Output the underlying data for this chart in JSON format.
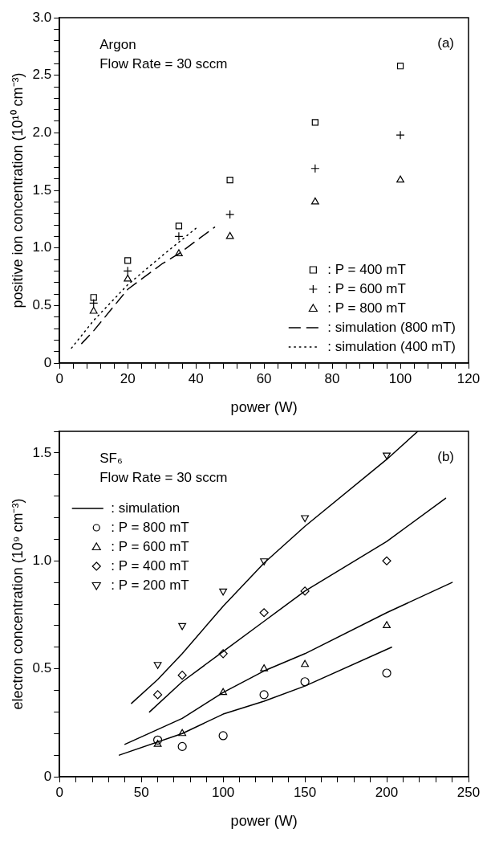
{
  "chart_data": [
    {
      "type": "scatter",
      "xlabel": "power (W)",
      "ylabel": "positive ion concentration (10¹⁰ cm⁻³)",
      "annotations": [
        "Argon",
        "Flow Rate = 30 sccm",
        "(a)"
      ],
      "legend": "bottom right",
      "grid": false,
      "xlim": [
        0,
        120
      ],
      "xticks": [
        0,
        {
          "value": 4,
          "label": null
        },
        {
          "value": 8,
          "label": null
        },
        {
          "value": 12,
          "label": null
        },
        {
          "value": 16,
          "label": null
        },
        20,
        {
          "value": 24,
          "label": null
        },
        {
          "value": 28,
          "label": null
        },
        {
          "value": 32,
          "label": null
        },
        {
          "value": 36,
          "label": null
        },
        40,
        {
          "value": 44,
          "label": null
        },
        {
          "value": 48,
          "label": null
        },
        {
          "value": 52,
          "label": null
        },
        {
          "value": 56,
          "label": null
        },
        60,
        {
          "value": 64,
          "label": null
        },
        {
          "value": 68,
          "label": null
        },
        {
          "value": 72,
          "label": null
        },
        {
          "value": 76,
          "label": null
        },
        80,
        {
          "value": 84,
          "label": null
        },
        {
          "value": 88,
          "label": null
        },
        {
          "value": 92,
          "label": null
        },
        {
          "value": 96,
          "label": null
        },
        100,
        {
          "value": 104,
          "label": null
        },
        {
          "value": 108,
          "label": null
        },
        {
          "value": 112,
          "label": null
        },
        {
          "value": 116,
          "label": null
        },
        120
      ],
      "ylim": [
        0,
        3
      ],
      "yticks": [
        0,
        {
          "value": 0.1,
          "label": null
        },
        {
          "value": 0.2,
          "label": null
        },
        {
          "value": 0.3,
          "label": null
        },
        {
          "value": 0.4,
          "label": null
        },
        0.5,
        {
          "value": 0.6,
          "label": null
        },
        {
          "value": 0.7,
          "label": null
        },
        {
          "value": 0.8,
          "label": null
        },
        {
          "value": 0.9,
          "label": null
        },
        {
          "value": 1,
          "label": "1.0"
        },
        {
          "value": 1.1,
          "label": null
        },
        {
          "value": 1.2,
          "label": null
        },
        {
          "value": 1.3,
          "label": null
        },
        {
          "value": 1.4,
          "label": null
        },
        1.5,
        {
          "value": 1.6,
          "label": null
        },
        {
          "value": 1.7,
          "label": null
        },
        {
          "value": 1.8,
          "label": null
        },
        {
          "value": 1.9,
          "label": null
        },
        {
          "value": 2,
          "label": "2.0"
        },
        {
          "value": 2.1,
          "label": null
        },
        {
          "value": 2.2,
          "label": null
        },
        {
          "value": 2.3,
          "label": null
        },
        {
          "value": 2.4,
          "label": null
        },
        2.5,
        {
          "value": 2.6,
          "label": null
        },
        {
          "value": 2.7,
          "label": null
        },
        {
          "value": 2.8,
          "label": null
        },
        {
          "value": 2.9,
          "label": null
        },
        {
          "value": 3,
          "label": "3.0"
        }
      ],
      "x": [
        10,
        20,
        35,
        50,
        75,
        100
      ],
      "series": [
        {
          "name": ": P = 400 mT",
          "color": "#000000",
          "marker": "square",
          "values": [
            0.57,
            0.89,
            1.19,
            1.59,
            2.09,
            2.58
          ]
        },
        {
          "name": ": P = 600 mT",
          "color": "#000000",
          "marker": "cross",
          "values": [
            0.52,
            0.8,
            1.1,
            1.29,
            1.69,
            1.98
          ]
        },
        {
          "name": ": P = 800 mT",
          "color": "#000000",
          "marker": "triangle",
          "values": [
            0.45,
            0.73,
            0.95,
            1.1,
            1.4,
            1.59
          ]
        },
        {
          "name": ": simulation (800 mT)",
          "type": "line",
          "color": "#000000",
          "marker": "none",
          "line_style": "dashed",
          "x": [
            6.5,
            10,
            20,
            30,
            35,
            45.5
          ],
          "values": [
            0.17,
            0.28,
            0.64,
            0.86,
            0.95,
            1.18
          ]
        },
        {
          "name": ": simulation (400 mT)",
          "type": "line",
          "color": "#000000",
          "marker": "none",
          "line_style": "dotted",
          "x": [
            3.5,
            10,
            20,
            30,
            40
          ],
          "values": [
            0.13,
            0.37,
            0.68,
            0.93,
            1.17
          ]
        }
      ]
    },
    {
      "type": "scatter",
      "xlabel": "power (W)",
      "ylabel": "electron concentration (10⁹ cm⁻³)",
      "annotations": [
        "SF₆",
        "Flow Rate = 30 sccm",
        "(b)"
      ],
      "legend": "top left",
      "grid": false,
      "xlim": [
        0,
        250
      ],
      "xticks": [
        0,
        {
          "value": 10,
          "label": null
        },
        {
          "value": 20,
          "label": null
        },
        {
          "value": 30,
          "label": null
        },
        {
          "value": 40,
          "label": null
        },
        50,
        {
          "value": 60,
          "label": null
        },
        {
          "value": 70,
          "label": null
        },
        {
          "value": 80,
          "label": null
        },
        {
          "value": 90,
          "label": null
        },
        100,
        {
          "value": 110,
          "label": null
        },
        {
          "value": 120,
          "label": null
        },
        {
          "value": 130,
          "label": null
        },
        {
          "value": 140,
          "label": null
        },
        150,
        {
          "value": 160,
          "label": null
        },
        {
          "value": 170,
          "label": null
        },
        {
          "value": 180,
          "label": null
        },
        {
          "value": 190,
          "label": null
        },
        200,
        {
          "value": 210,
          "label": null
        },
        {
          "value": 220,
          "label": null
        },
        {
          "value": 230,
          "label": null
        },
        {
          "value": 240,
          "label": null
        },
        250
      ],
      "ylim": [
        0,
        1.6
      ],
      "yticks": [
        0,
        {
          "value": 0.1,
          "label": null
        },
        {
          "value": 0.2,
          "label": null
        },
        {
          "value": 0.3,
          "label": null
        },
        {
          "value": 0.4,
          "label": null
        },
        0.5,
        {
          "value": 0.6,
          "label": null
        },
        {
          "value": 0.7,
          "label": null
        },
        {
          "value": 0.8,
          "label": null
        },
        {
          "value": 0.9,
          "label": null
        },
        {
          "value": 1,
          "label": "1.0"
        },
        {
          "value": 1.1,
          "label": null
        },
        {
          "value": 1.2,
          "label": null
        },
        {
          "value": 1.3,
          "label": null
        },
        {
          "value": 1.4,
          "label": null
        },
        1.5,
        {
          "value": 1.6,
          "label": null
        }
      ],
      "x": [
        60,
        75,
        100,
        125,
        150,
        200
      ],
      "series": [
        {
          "name": ": simulation",
          "type": "line",
          "color": "#000000",
          "marker": "none",
          "line_style": "solid",
          "x": [
            44,
            60,
            75,
            100,
            125,
            150,
            200,
            219
          ],
          "values": [
            0.34,
            0.45,
            0.57,
            0.79,
            0.99,
            1.16,
            1.47,
            1.6
          ]
        },
        {
          "name": ": P = 800 mT",
          "color": "#000000",
          "marker": "circle",
          "values": [
            0.17,
            0.14,
            0.19,
            0.38,
            0.44,
            0.48
          ]
        },
        {
          "name": ": P = 600 mT",
          "color": "#000000",
          "marker": "triangle",
          "values": [
            0.15,
            0.2,
            0.39,
            0.5,
            0.52,
            0.7
          ]
        },
        {
          "name": ": P = 400 mT",
          "color": "#000000",
          "marker": "diamond",
          "values": [
            0.38,
            0.47,
            0.57,
            0.76,
            0.86,
            1.0
          ]
        },
        {
          "name": ": P = 200 mT",
          "color": "#000000",
          "marker": "triangle-down",
          "values": [
            0.52,
            0.7,
            0.86,
            1.0,
            1.2,
            1.49
          ]
        },
        {
          "type": "line",
          "color": "#000000",
          "marker": "none",
          "line_style": "solid",
          "x": [
            55,
            75,
            100,
            125,
            150,
            200,
            236
          ],
          "values": [
            0.3,
            0.44,
            0.58,
            0.72,
            0.86,
            1.09,
            1.29
          ]
        },
        {
          "type": "line",
          "color": "#000000",
          "marker": "none",
          "line_style": "solid",
          "x": [
            40,
            75,
            100,
            125,
            150,
            200,
            240
          ],
          "values": [
            0.15,
            0.27,
            0.39,
            0.49,
            0.57,
            0.76,
            0.9
          ]
        },
        {
          "type": "line",
          "color": "#000000",
          "marker": "none",
          "line_style": "solid",
          "x": [
            36.5,
            75,
            100,
            125,
            150,
            203
          ],
          "values": [
            0.1,
            0.2,
            0.29,
            0.35,
            0.42,
            0.6
          ]
        }
      ]
    }
  ]
}
